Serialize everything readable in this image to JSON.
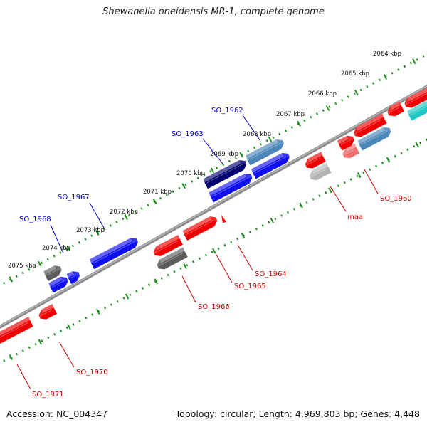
{
  "title": "Shewanella oneidensis MR-1, complete genome",
  "accession_text": "Accession: NC_004347",
  "topology_text": "Topology: circular; Length: 4,969,803 bp; Genes: 4,448",
  "colors": {
    "backbone": "#8c8c8c",
    "ruler_dots": "#1f8f1f",
    "forward_label": "#0000cc",
    "reverse_label": "#cc0000",
    "red": "#ee0000",
    "blue": "#1010ee",
    "navy": "#000070",
    "steel": "#4a86b8",
    "gray": "#5c5c5c",
    "lightgray": "#b4b4b4",
    "cyan": "#21c6c6",
    "pink": "#ee6e6e"
  },
  "scale_ticks": [
    "2075 kbp",
    "2074 kbp",
    "2073 kbp",
    "2072 kbp",
    "2071 kbp",
    "2070 kbp",
    "2069 kbp",
    "2068 kbp",
    "2067 kbp",
    "2066 kbp",
    "2065 kbp",
    "2064 kbp"
  ],
  "labels": [
    {
      "text": "SO_1962",
      "strand": "forward"
    },
    {
      "text": "SO_1963",
      "strand": "forward"
    },
    {
      "text": "SO_1967",
      "strand": "forward"
    },
    {
      "text": "SO_1968",
      "strand": "forward"
    },
    {
      "text": "SO_1960",
      "strand": "reverse"
    },
    {
      "text": "maa",
      "strand": "reverse"
    },
    {
      "text": "SO_1964",
      "strand": "reverse"
    },
    {
      "text": "SO_1965",
      "strand": "reverse"
    },
    {
      "text": "SO_1966",
      "strand": "reverse"
    },
    {
      "text": "SO_1970",
      "strand": "reverse"
    },
    {
      "text": "SO_1971",
      "strand": "reverse"
    }
  ]
}
